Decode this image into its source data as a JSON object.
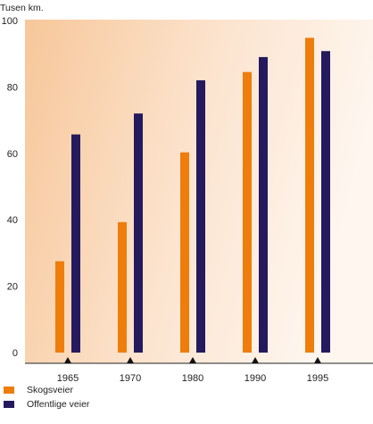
{
  "chart_data": {
    "type": "bar",
    "unit_label": "Tusen km.",
    "categories": [
      "1965",
      "1970",
      "1980",
      "1990",
      "1995"
    ],
    "series": [
      {
        "name": "Skogsveier",
        "values": [
          27.5,
          39.3,
          60.3,
          84.5,
          94.8
        ],
        "color": "#ee7d0c"
      },
      {
        "name": "Offentlige veier",
        "values": [
          65.7,
          72.0,
          82.0,
          89.0,
          90.8
        ],
        "color": "#251a5e"
      }
    ],
    "ylim": [
      0,
      100
    ],
    "yticks": [
      "0",
      "20",
      "40",
      "60",
      "80",
      "100"
    ],
    "grid": false,
    "legend_position": "bottom-left",
    "background": "orange-gradient"
  }
}
